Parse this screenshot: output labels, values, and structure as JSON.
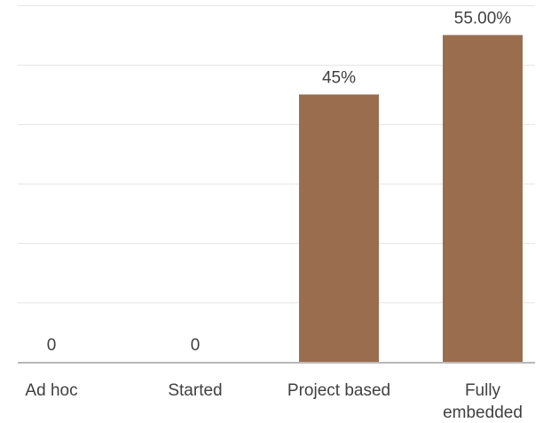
{
  "chart_data": {
    "type": "bar",
    "categories": [
      "Ad hoc",
      "Started",
      "Project based",
      "Fully embedded"
    ],
    "category_lines": [
      [
        "Ad hoc"
      ],
      [
        "Started"
      ],
      [
        "Project based"
      ],
      [
        "Fully",
        "embedded"
      ]
    ],
    "values": [
      0,
      0,
      45,
      55
    ],
    "data_labels": [
      "0",
      "0",
      "45%",
      "55.00%"
    ],
    "ylim": [
      0,
      60
    ],
    "grid": true,
    "colors": {
      "bar": "#9a6d4f",
      "grid": "#e6e6e6",
      "axis": "#b8b8b8",
      "label_text": "#404040"
    }
  }
}
